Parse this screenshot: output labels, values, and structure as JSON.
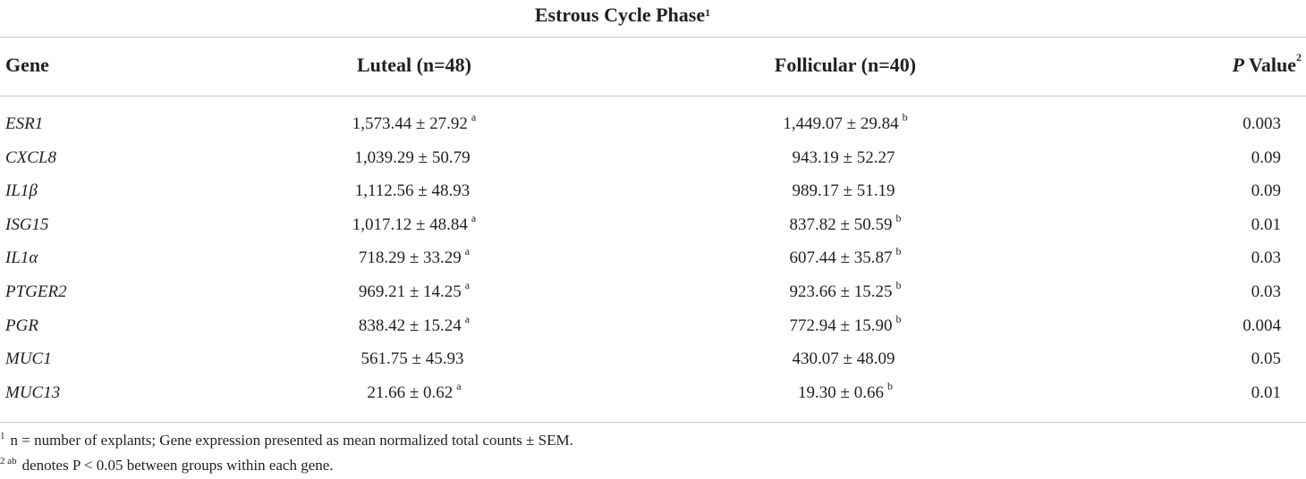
{
  "table": {
    "super_header": {
      "text": "Estrous Cycle Phase",
      "note": "1"
    },
    "columns": {
      "gene": "Gene",
      "luteal": "Luteal (n=48)",
      "follicular": "Follicular (n=40)",
      "p_prefix": "P",
      "p_suffix": " Value",
      "p_note": "2"
    },
    "rows": [
      {
        "gene": "ESR1",
        "luteal": "1,573.44 ± 27.92",
        "luteal_sup": "a",
        "foll": "1,449.07 ± 29.84",
        "foll_sup": "b",
        "p": "0.003"
      },
      {
        "gene": "CXCL8",
        "luteal": "1,039.29 ± 50.79",
        "luteal_sup": "",
        "foll": "943.19 ± 52.27",
        "foll_sup": "",
        "p": "0.09"
      },
      {
        "gene": "IL1β",
        "luteal": "1,112.56 ± 48.93",
        "luteal_sup": "",
        "foll": "989.17 ± 51.19",
        "foll_sup": "",
        "p": "0.09"
      },
      {
        "gene": "ISG15",
        "luteal": "1,017.12 ± 48.84",
        "luteal_sup": "a",
        "foll": "837.82 ± 50.59",
        "foll_sup": "b",
        "p": "0.01"
      },
      {
        "gene": "IL1α",
        "luteal": "718.29 ± 33.29",
        "luteal_sup": "a",
        "foll": "607.44 ± 35.87",
        "foll_sup": "b",
        "p": "0.03"
      },
      {
        "gene": "PTGER2",
        "luteal": "969.21 ± 14.25",
        "luteal_sup": "a",
        "foll": "923.66 ± 15.25",
        "foll_sup": "b",
        "p": "0.03"
      },
      {
        "gene": "PGR",
        "luteal": "838.42 ± 15.24",
        "luteal_sup": "a",
        "foll": "772.94 ± 15.90",
        "foll_sup": "b",
        "p": "0.004"
      },
      {
        "gene": "MUC1",
        "luteal": "561.75 ± 45.93",
        "luteal_sup": "",
        "foll": "430.07 ± 48.09",
        "foll_sup": "",
        "p": "0.05"
      },
      {
        "gene": "MUC13",
        "luteal": "21.66 ± 0.62",
        "luteal_sup": "a",
        "foll": "19.30 ± 0.66",
        "foll_sup": "b",
        "p": "0.01"
      }
    ],
    "footnotes": [
      {
        "mark": "1",
        "text": "n = number of explants; Gene expression presented as mean normalized total counts ± SEM."
      },
      {
        "mark": "2 ab",
        "text": "denotes P < 0.05 between groups within each gene."
      }
    ]
  }
}
